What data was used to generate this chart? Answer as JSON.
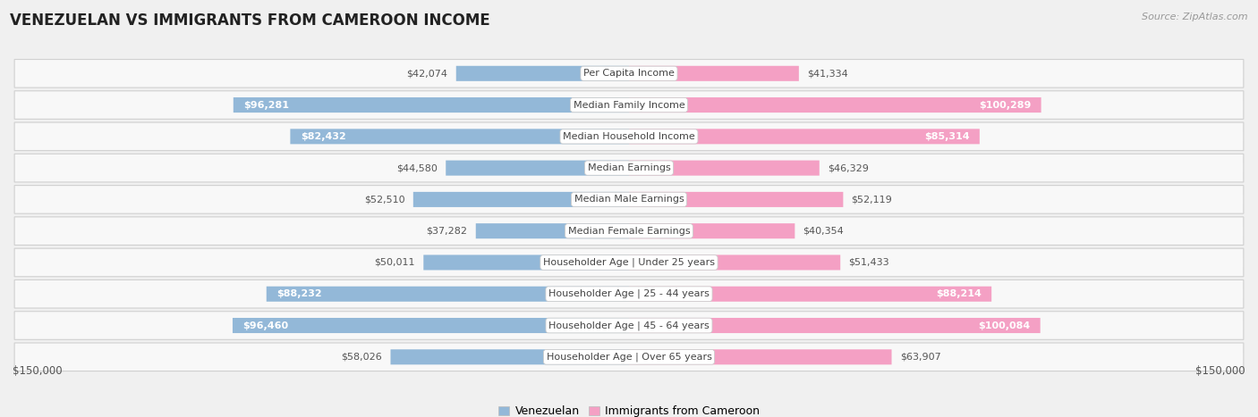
{
  "title": "VENEZUELAN VS IMMIGRANTS FROM CAMEROON INCOME",
  "source": "Source: ZipAtlas.com",
  "categories": [
    "Per Capita Income",
    "Median Family Income",
    "Median Household Income",
    "Median Earnings",
    "Median Male Earnings",
    "Median Female Earnings",
    "Householder Age | Under 25 years",
    "Householder Age | 25 - 44 years",
    "Householder Age | 45 - 64 years",
    "Householder Age | Over 65 years"
  ],
  "venezuelan_values": [
    42074,
    96281,
    82432,
    44580,
    52510,
    37282,
    50011,
    88232,
    96460,
    58026
  ],
  "cameroon_values": [
    41334,
    100289,
    85314,
    46329,
    52119,
    40354,
    51433,
    88214,
    100084,
    63907
  ],
  "venezuelan_labels": [
    "$42,074",
    "$96,281",
    "$82,432",
    "$44,580",
    "$52,510",
    "$37,282",
    "$50,011",
    "$88,232",
    "$96,460",
    "$58,026"
  ],
  "cameroon_labels": [
    "$41,334",
    "$100,289",
    "$85,314",
    "$46,329",
    "$52,119",
    "$40,354",
    "$51,433",
    "$88,214",
    "$100,084",
    "$63,907"
  ],
  "venezuelan_color": "#93b8d8",
  "cameroon_color": "#f4a0c4",
  "max_value": 150000,
  "bg_color": "#f0f0f0",
  "row_bg": "#f8f8f8",
  "label_inside_threshold": 68000,
  "label_fontsize": 8.0,
  "title_fontsize": 12,
  "category_fontsize": 8.0,
  "legend_venezuelan": "Venezuelan",
  "legend_cameroon": "Immigrants from Cameroon",
  "axis_label_left": "$150,000",
  "axis_label_right": "$150,000"
}
